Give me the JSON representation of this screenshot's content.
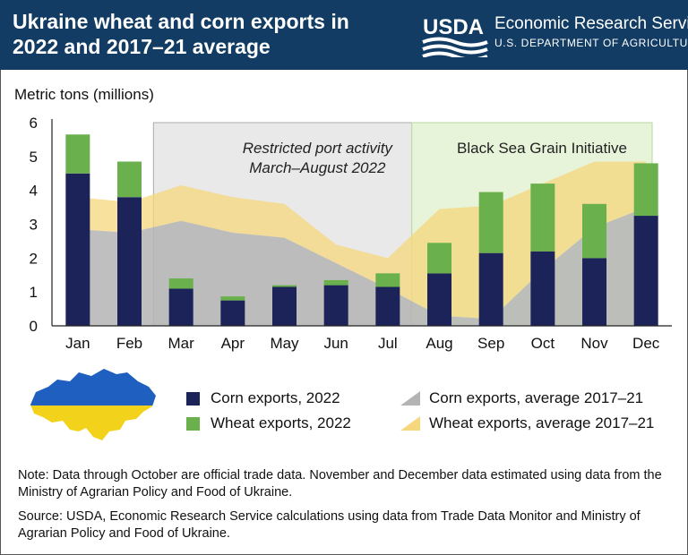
{
  "header": {
    "title": "Ukraine wheat and corn exports in 2022 and 2017–21 average",
    "logo_text": "USDA",
    "agency": "Economic Research Service",
    "department": "U.S. DEPARTMENT OF AGRICULTURE"
  },
  "colors": {
    "header_bg": "#123c63",
    "corn_2022": "#1b2359",
    "wheat_2022": "#6ab04c",
    "corn_avg": "#b4b4b4",
    "wheat_avg": "#f6d77b",
    "restricted_bg": "#e9e9e9",
    "grain_bg": "#e7f4d9",
    "ukraine_blue": "#1f5fbf",
    "ukraine_yellow": "#f3d21c"
  },
  "chart_data": {
    "type": "bar",
    "title": "Ukraine wheat and corn exports in 2022 and 2017–21 average",
    "ylabel": "Metric tons (millions)",
    "xlabel": "",
    "ylim": [
      0,
      6
    ],
    "yticks": [
      "0",
      "1",
      "2",
      "3",
      "4",
      "5",
      "6"
    ],
    "categories": [
      "Jan",
      "Feb",
      "Mar",
      "Apr",
      "May",
      "Jun",
      "Jul",
      "Aug",
      "Sep",
      "Oct",
      "Nov",
      "Dec"
    ],
    "series": [
      {
        "name": "Corn exports, 2022",
        "kind": "stacked-bar",
        "values": [
          4.5,
          3.8,
          1.1,
          0.75,
          1.15,
          1.2,
          1.15,
          1.55,
          2.15,
          2.2,
          2.0,
          3.25
        ]
      },
      {
        "name": "Wheat exports, 2022",
        "kind": "stacked-bar",
        "values": [
          1.15,
          1.05,
          0.3,
          0.12,
          0.05,
          0.15,
          0.4,
          0.9,
          1.8,
          2.0,
          1.6,
          1.55
        ]
      },
      {
        "name": "Corn exports, average 2017–21",
        "kind": "area",
        "values": [
          2.85,
          2.75,
          3.1,
          2.75,
          2.6,
          1.85,
          1.1,
          0.3,
          0.2,
          1.65,
          2.9,
          3.5
        ]
      },
      {
        "name": "Wheat exports, average 2017–21",
        "kind": "stacked-area",
        "values": [
          0.95,
          0.9,
          1.05,
          1.05,
          1.0,
          0.55,
          0.9,
          3.15,
          3.35,
          2.55,
          1.95,
          1.35
        ]
      }
    ],
    "annotations": [
      {
        "text_line1": "Restricted port activity",
        "text_line2": "March–August 2022",
        "from": "Mar",
        "to": "Aug"
      },
      {
        "text_line1": "Black Sea Grain Initiative",
        "text_line2": "",
        "from": "Aug",
        "to": "Dec"
      }
    ],
    "legend": [
      {
        "label": "Corn exports, 2022",
        "shape": "square",
        "color": "#1b2359"
      },
      {
        "label": "Wheat exports, 2022",
        "shape": "square",
        "color": "#6ab04c"
      },
      {
        "label": "Corn exports, average 2017–21",
        "shape": "triangle",
        "color": "#b4b4b4"
      },
      {
        "label": "Wheat exports, average 2017–21",
        "shape": "triangle",
        "color": "#f6d77b"
      }
    ],
    "legend_position": "bottom"
  },
  "notes": {
    "note": "Note: Data through October are official trade data. November and December data estimated using data from the Ministry of Agrarian Policy and Food of Ukraine.",
    "source": "Source: USDA, Economic Research Service calculations using data from Trade Data Monitor and Ministry of Agrarian Policy and Food of Ukraine."
  }
}
